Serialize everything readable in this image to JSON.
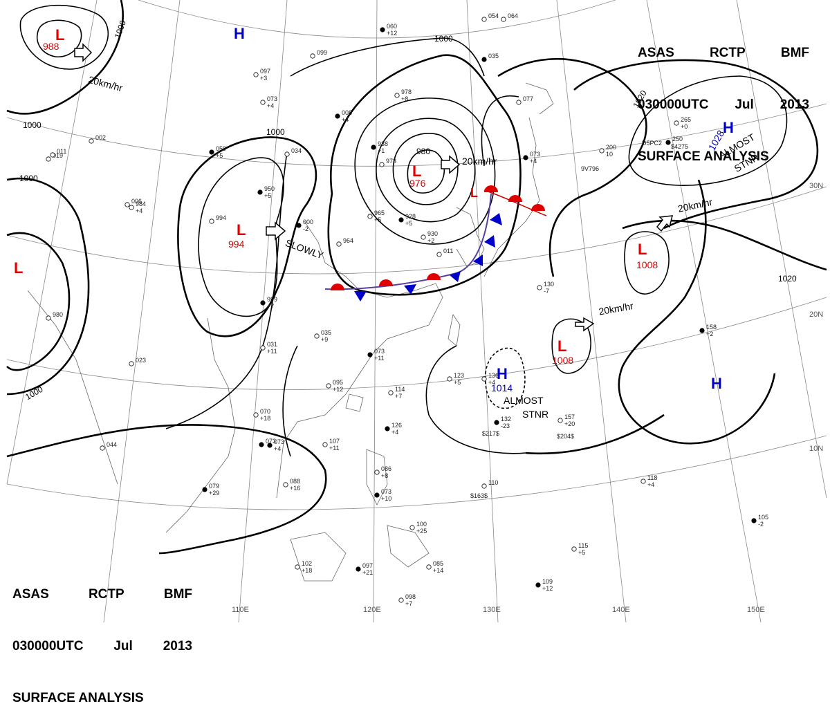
{
  "header": {
    "line1": [
      "ASAS",
      "RCTP",
      "BMF"
    ],
    "line2": [
      "030000UTC",
      "Jul",
      "2013"
    ],
    "line3": "SURFACE ANALYSIS"
  },
  "colors": {
    "low": "#e00000",
    "high": "#0000cc",
    "isobar": "#000000",
    "grid": "#888888",
    "coast": "#666666"
  },
  "lows": [
    {
      "symbol": "L",
      "pressure": "988"
    },
    {
      "symbol": "L",
      "pressure": "994"
    },
    {
      "symbol": "L",
      "pressure": "976"
    },
    {
      "symbol": "L",
      "pressure": "1008"
    },
    {
      "symbol": "L",
      "pressure": "1008"
    },
    {
      "symbol": "L",
      "pressure": ""
    },
    {
      "symbol": "L",
      "pressure": ""
    }
  ],
  "highs": [
    {
      "symbol": "H",
      "pressure": ""
    },
    {
      "symbol": "H",
      "pressure": "1028"
    },
    {
      "symbol": "H",
      "pressure": "1014"
    },
    {
      "symbol": "H",
      "pressure": ""
    }
  ],
  "isobar_labels": [
    "1000",
    "1000",
    "1000",
    "1000",
    "1000",
    "1000",
    "980",
    "1020",
    "1020"
  ],
  "motions": [
    "20km/hr",
    "20km/hr",
    "SLOWLY",
    "20km/hr",
    "20km/hr"
  ],
  "stationary": [
    "ALMOST",
    "STNR",
    "ALMOST",
    "STNR"
  ],
  "lon_labels": [
    "110E",
    "120E",
    "130E",
    "140E",
    "150E"
  ],
  "lat_labels": [
    "30N",
    "20N",
    "10N"
  ],
  "stations": [
    [
      "060",
      "+12"
    ],
    [
      "097",
      "+3"
    ],
    [
      "073",
      "+4"
    ],
    [
      "008",
      "+4"
    ],
    [
      "099",
      ""
    ],
    [
      "978",
      "+8"
    ],
    [
      "938",
      "+1"
    ],
    [
      "973",
      ""
    ],
    [
      "034",
      ""
    ],
    [
      "950",
      "+5"
    ],
    [
      "019",
      ""
    ],
    [
      "002",
      ""
    ],
    [
      "059",
      "+5"
    ],
    [
      "994",
      ""
    ],
    [
      "984",
      "+4"
    ],
    [
      "000",
      "-2"
    ],
    [
      "964",
      ""
    ],
    [
      "965",
      "+5"
    ],
    [
      "928",
      "+5"
    ],
    [
      "930",
      "+2"
    ],
    [
      "011",
      ""
    ],
    [
      "999",
      "+7"
    ],
    [
      "035",
      "+9"
    ],
    [
      "031",
      "+11"
    ],
    [
      "073",
      "+11"
    ],
    [
      "095",
      "+12"
    ],
    [
      "114",
      "+7"
    ],
    [
      "126",
      "+4"
    ],
    [
      "107",
      "+11"
    ],
    [
      "070",
      "+18"
    ],
    [
      "073",
      ""
    ],
    [
      "044",
      ""
    ],
    [
      "023",
      ""
    ],
    [
      "079",
      "+29"
    ],
    [
      "088",
      "+16"
    ],
    [
      "086",
      "+8"
    ],
    [
      "073",
      "+10"
    ],
    [
      "100",
      "+25"
    ],
    [
      "102",
      "+18"
    ],
    [
      "097",
      "+21"
    ],
    [
      "085",
      "+14"
    ],
    [
      "098",
      "+7"
    ],
    [
      "109",
      "+12"
    ],
    [
      "115",
      "+5"
    ],
    [
      "118",
      "+4"
    ],
    [
      "105",
      "-2"
    ],
    [
      "110",
      ""
    ],
    [
      "157",
      "+20"
    ],
    [
      "132",
      "-23"
    ],
    [
      "136",
      "+4"
    ],
    [
      "123",
      "+5"
    ],
    [
      "158",
      "+2"
    ],
    [
      "200",
      "10"
    ],
    [
      "265",
      "+0"
    ],
    [
      "250",
      ""
    ],
    [
      "130",
      "-7"
    ],
    [
      "077",
      ""
    ],
    [
      "073",
      "+4"
    ],
    [
      "980",
      ""
    ],
    [
      "006",
      ""
    ],
    [
      "073",
      "+4"
    ],
    [
      "011",
      ""
    ],
    [
      "054",
      ""
    ],
    [
      "035",
      ""
    ],
    [
      "064",
      ""
    ]
  ],
  "station_codes": [
    "$217$",
    "$204$",
    "$163$",
    "9V796",
    "D5PC2",
    "$4275"
  ]
}
